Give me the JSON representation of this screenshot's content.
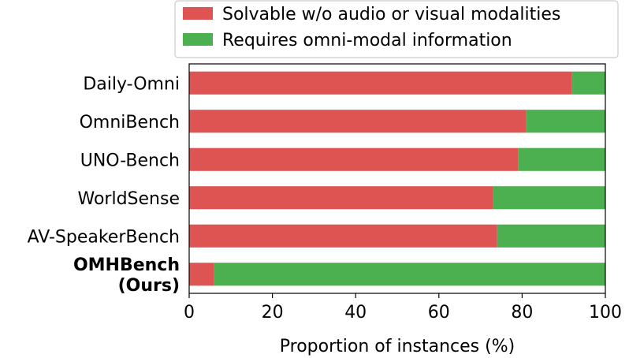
{
  "chart_data": {
    "type": "bar",
    "orientation": "horizontal",
    "stacked": true,
    "categories": [
      "Daily-Omni",
      "OmniBench",
      "UNO-Bench",
      "WorldSense",
      "AV-SpeakerBench",
      "OMHBench (Ours)"
    ],
    "category_lines": [
      [
        "Daily-Omni"
      ],
      [
        "OmniBench"
      ],
      [
        "UNO-Bench"
      ],
      [
        "WorldSense"
      ],
      [
        "AV-SpeakerBench"
      ],
      [
        "OMHBench",
        "(Ours)"
      ]
    ],
    "bold_categories": [
      "OMHBench (Ours)"
    ],
    "series": [
      {
        "name": "Solvable w/o audio or visual modalities",
        "color": "#dd5452",
        "values": [
          92,
          81,
          79,
          73,
          74,
          6
        ]
      },
      {
        "name": "Requires omni-modal information",
        "color": "#4caf50",
        "values": [
          8,
          19,
          21,
          27,
          26,
          94
        ]
      }
    ],
    "xlabel": "Proportion of instances (%)",
    "ylabel": "",
    "xlim": [
      0,
      100
    ],
    "xticks": [
      0,
      20,
      40,
      60,
      80,
      100
    ],
    "grid": false,
    "legend_position": "top-right"
  }
}
